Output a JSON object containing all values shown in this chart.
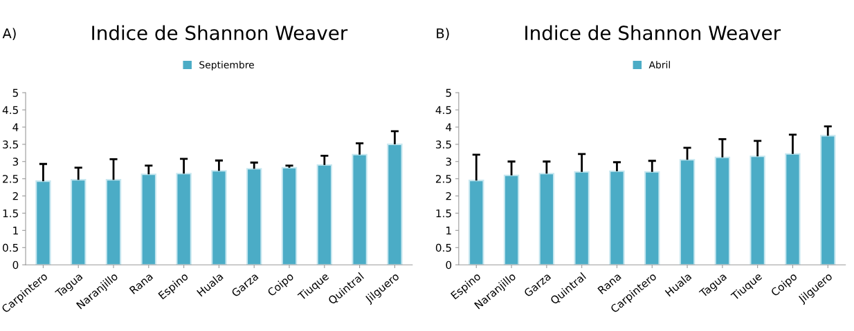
{
  "chart_data": [
    {
      "type": "bar",
      "title": "Indice de Shannon Weaver",
      "annotations": [
        "A)"
      ],
      "categories": [
        "Carpintero",
        "Tagua",
        "Naranjillo",
        "Rana",
        "Espino",
        "Huala",
        "Garza",
        "Coipo",
        "Tiuque",
        "Quintral",
        "Jilguero"
      ],
      "series": [
        {
          "name": "Septiembre",
          "color": "#4bacc6",
          "values": [
            2.43,
            2.47,
            2.47,
            2.63,
            2.65,
            2.73,
            2.79,
            2.82,
            2.9,
            3.2,
            3.5
          ],
          "errors": [
            [
              2.43,
              2.93
            ],
            [
              2.47,
              2.82
            ],
            [
              2.47,
              3.07
            ],
            [
              2.63,
              2.88
            ],
            [
              2.65,
              3.08
            ],
            [
              2.73,
              3.03
            ],
            [
              2.79,
              2.97
            ],
            [
              2.82,
              2.88
            ],
            [
              2.9,
              3.17
            ],
            [
              3.2,
              3.53
            ],
            [
              3.5,
              3.88
            ]
          ]
        }
      ],
      "ylim": [
        0,
        5
      ],
      "yticks": [
        0,
        0.5,
        1,
        1.5,
        2,
        2.5,
        3,
        3.5,
        4,
        4.5,
        5
      ],
      "legend": "top"
    },
    {
      "type": "bar",
      "title": "Indice de Shannon Weaver",
      "annotations": [
        "B)"
      ],
      "categories": [
        "Espino",
        "Naranjillo",
        "Garza",
        "Quintral",
        "Rana",
        "Carpintero",
        "Huala",
        "Tagua",
        "Tiuque",
        "Coipo",
        "Jilguero"
      ],
      "series": [
        {
          "name": "Abril",
          "color": "#4bacc6",
          "values": [
            2.45,
            2.6,
            2.65,
            2.7,
            2.72,
            2.7,
            3.05,
            3.12,
            3.15,
            3.22,
            3.75
          ],
          "errors": [
            [
              2.45,
              3.2
            ],
            [
              2.6,
              3.0
            ],
            [
              2.65,
              3.0
            ],
            [
              2.7,
              3.22
            ],
            [
              2.72,
              2.98
            ],
            [
              2.7,
              3.02
            ],
            [
              3.05,
              3.4
            ],
            [
              3.12,
              3.65
            ],
            [
              3.15,
              3.6
            ],
            [
              3.22,
              3.78
            ],
            [
              3.75,
              4.02
            ]
          ]
        }
      ],
      "ylim": [
        0,
        5
      ],
      "yticks": [
        0,
        0.5,
        1,
        1.5,
        2,
        2.5,
        3,
        3.5,
        4,
        4.5,
        5
      ],
      "legend": "top"
    }
  ]
}
